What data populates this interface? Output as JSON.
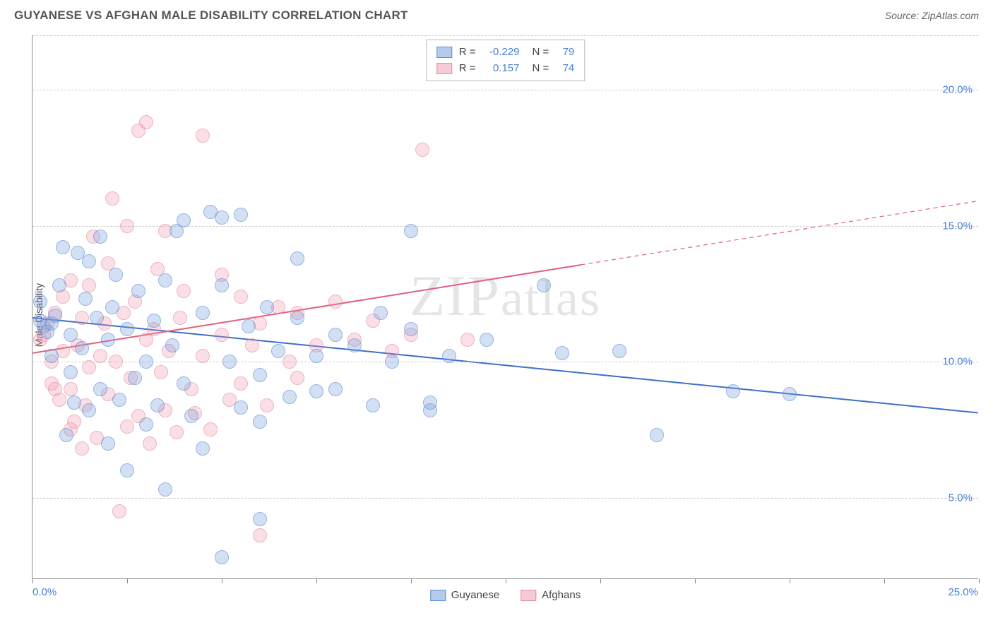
{
  "header": {
    "title": "GUYANESE VS AFGHAN MALE DISABILITY CORRELATION CHART",
    "source": "Source: ZipAtlas.com"
  },
  "chart": {
    "type": "scatter",
    "ylabel": "Male Disability",
    "xlim": [
      0,
      25
    ],
    "ylim": [
      2,
      22
    ],
    "xtick_positions": [
      0,
      2.5,
      5,
      7.5,
      10,
      12.5,
      15,
      17.5,
      20,
      22.5,
      25
    ],
    "xtick_labels_shown": {
      "first": "0.0%",
      "last": "25.0%"
    },
    "ytick_lines": [
      5,
      10,
      15,
      20
    ],
    "ytick_labels": [
      "5.0%",
      "10.0%",
      "15.0%",
      "20.0%"
    ],
    "grid_color": "#cccccc",
    "background_color": "#ffffff",
    "axis_color": "#888888",
    "tick_label_color": "#4a7fd8",
    "axis_label_color": "#444444",
    "marker_radius": 10,
    "watermark": "ZIPatlas",
    "series": [
      {
        "name": "Guyanese",
        "color_fill": "rgba(120,160,220,0.5)",
        "color_stroke": "#5b8dd6",
        "hex": "#7aa0dc",
        "R": "-0.229",
        "N": "79",
        "trend": {
          "x1": 0,
          "y1": 11.6,
          "x2": 25,
          "y2": 8.1,
          "solid_to_x": 25,
          "color": "#3f6fc7",
          "width": 2
        },
        "points": [
          [
            0.2,
            11.5
          ],
          [
            0.3,
            11.3
          ],
          [
            0.4,
            11.1
          ],
          [
            0.5,
            11.4
          ],
          [
            0.2,
            12.2
          ],
          [
            0.5,
            10.2
          ],
          [
            0.6,
            11.7
          ],
          [
            0.7,
            12.8
          ],
          [
            0.8,
            14.2
          ],
          [
            1.0,
            11.0
          ],
          [
            1.0,
            9.6
          ],
          [
            1.2,
            14.0
          ],
          [
            1.3,
            10.5
          ],
          [
            1.4,
            12.3
          ],
          [
            1.5,
            13.7
          ],
          [
            1.5,
            8.2
          ],
          [
            1.7,
            11.6
          ],
          [
            1.8,
            9.0
          ],
          [
            1.8,
            14.6
          ],
          [
            2.0,
            7.0
          ],
          [
            2.0,
            10.8
          ],
          [
            2.1,
            12.0
          ],
          [
            2.2,
            13.2
          ],
          [
            2.3,
            8.6
          ],
          [
            2.5,
            11.2
          ],
          [
            2.5,
            6.0
          ],
          [
            2.7,
            9.4
          ],
          [
            2.8,
            12.6
          ],
          [
            3.0,
            10.0
          ],
          [
            3.0,
            7.7
          ],
          [
            3.2,
            11.5
          ],
          [
            3.3,
            8.4
          ],
          [
            3.5,
            13.0
          ],
          [
            3.5,
            5.3
          ],
          [
            3.7,
            10.6
          ],
          [
            3.8,
            14.8
          ],
          [
            4.0,
            9.2
          ],
          [
            4.0,
            15.2
          ],
          [
            4.2,
            8.0
          ],
          [
            4.5,
            11.8
          ],
          [
            4.5,
            6.8
          ],
          [
            4.7,
            15.5
          ],
          [
            5.0,
            15.3
          ],
          [
            5.0,
            12.8
          ],
          [
            5.0,
            2.8
          ],
          [
            5.2,
            10.0
          ],
          [
            5.5,
            8.3
          ],
          [
            5.5,
            15.4
          ],
          [
            5.7,
            11.3
          ],
          [
            6.0,
            9.5
          ],
          [
            6.0,
            7.8
          ],
          [
            6.0,
            4.2
          ],
          [
            6.2,
            12.0
          ],
          [
            6.5,
            10.4
          ],
          [
            6.8,
            8.7
          ],
          [
            7.0,
            11.6
          ],
          [
            7.0,
            13.8
          ],
          [
            7.5,
            8.9
          ],
          [
            7.5,
            10.2
          ],
          [
            8.0,
            9.0
          ],
          [
            8.0,
            11.0
          ],
          [
            8.5,
            10.6
          ],
          [
            9.0,
            8.4
          ],
          [
            9.2,
            11.8
          ],
          [
            9.5,
            10.0
          ],
          [
            10.0,
            14.8
          ],
          [
            10.0,
            11.2
          ],
          [
            10.5,
            8.2
          ],
          [
            10.5,
            8.5
          ],
          [
            11.0,
            10.2
          ],
          [
            12.0,
            10.8
          ],
          [
            13.5,
            12.8
          ],
          [
            14.0,
            10.3
          ],
          [
            15.5,
            10.4
          ],
          [
            16.5,
            7.3
          ],
          [
            18.5,
            8.9
          ],
          [
            20.0,
            8.8
          ],
          [
            0.9,
            7.3
          ],
          [
            1.1,
            8.5
          ]
        ]
      },
      {
        "name": "Afghans",
        "color_fill": "rgba(240,150,170,0.45)",
        "color_stroke": "#e88aa0",
        "hex": "#f096aa",
        "R": "0.157",
        "N": "74",
        "trend": {
          "x1": 0,
          "y1": 10.3,
          "x2": 25,
          "y2": 15.9,
          "solid_to_x": 14.5,
          "color": "#e0607e",
          "width": 2
        },
        "points": [
          [
            0.2,
            10.8
          ],
          [
            0.3,
            11.0
          ],
          [
            0.4,
            11.4
          ],
          [
            0.5,
            10.0
          ],
          [
            0.5,
            9.2
          ],
          [
            0.6,
            11.8
          ],
          [
            0.7,
            8.6
          ],
          [
            0.8,
            10.4
          ],
          [
            0.8,
            12.4
          ],
          [
            1.0,
            9.0
          ],
          [
            1.0,
            13.0
          ],
          [
            1.1,
            7.8
          ],
          [
            1.2,
            10.6
          ],
          [
            1.3,
            11.6
          ],
          [
            1.4,
            8.4
          ],
          [
            1.5,
            12.8
          ],
          [
            1.5,
            9.8
          ],
          [
            1.6,
            14.6
          ],
          [
            1.7,
            7.2
          ],
          [
            1.8,
            10.2
          ],
          [
            1.9,
            11.4
          ],
          [
            2.0,
            8.8
          ],
          [
            2.0,
            13.6
          ],
          [
            2.1,
            16.0
          ],
          [
            2.2,
            10.0
          ],
          [
            2.3,
            4.5
          ],
          [
            2.4,
            11.8
          ],
          [
            2.5,
            7.6
          ],
          [
            2.5,
            15.0
          ],
          [
            2.6,
            9.4
          ],
          [
            2.7,
            12.2
          ],
          [
            2.8,
            18.5
          ],
          [
            2.8,
            8.0
          ],
          [
            3.0,
            10.8
          ],
          [
            3.0,
            18.8
          ],
          [
            3.1,
            7.0
          ],
          [
            3.2,
            11.2
          ],
          [
            3.3,
            13.4
          ],
          [
            3.4,
            9.6
          ],
          [
            3.5,
            8.2
          ],
          [
            3.5,
            14.8
          ],
          [
            3.6,
            10.4
          ],
          [
            3.8,
            7.4
          ],
          [
            3.9,
            11.6
          ],
          [
            4.0,
            12.6
          ],
          [
            4.2,
            9.0
          ],
          [
            4.3,
            8.1
          ],
          [
            4.5,
            18.3
          ],
          [
            4.5,
            10.2
          ],
          [
            4.7,
            7.5
          ],
          [
            5.0,
            11.0
          ],
          [
            5.0,
            13.2
          ],
          [
            5.2,
            8.6
          ],
          [
            5.5,
            12.4
          ],
          [
            5.5,
            9.2
          ],
          [
            5.8,
            10.6
          ],
          [
            6.0,
            11.4
          ],
          [
            6.0,
            3.6
          ],
          [
            6.2,
            8.4
          ],
          [
            6.5,
            12.0
          ],
          [
            6.8,
            10.0
          ],
          [
            7.0,
            9.4
          ],
          [
            7.0,
            11.8
          ],
          [
            7.5,
            10.6
          ],
          [
            8.0,
            12.2
          ],
          [
            8.5,
            10.8
          ],
          [
            9.0,
            11.5
          ],
          [
            9.5,
            10.4
          ],
          [
            10.0,
            11.0
          ],
          [
            10.3,
            17.8
          ],
          [
            11.5,
            10.8
          ],
          [
            0.6,
            9.0
          ],
          [
            1.0,
            7.5
          ],
          [
            1.3,
            6.8
          ]
        ]
      }
    ],
    "legend": {
      "items": [
        {
          "label": "Guyanese",
          "swatch": "blue"
        },
        {
          "label": "Afghans",
          "swatch": "pink"
        }
      ]
    }
  }
}
